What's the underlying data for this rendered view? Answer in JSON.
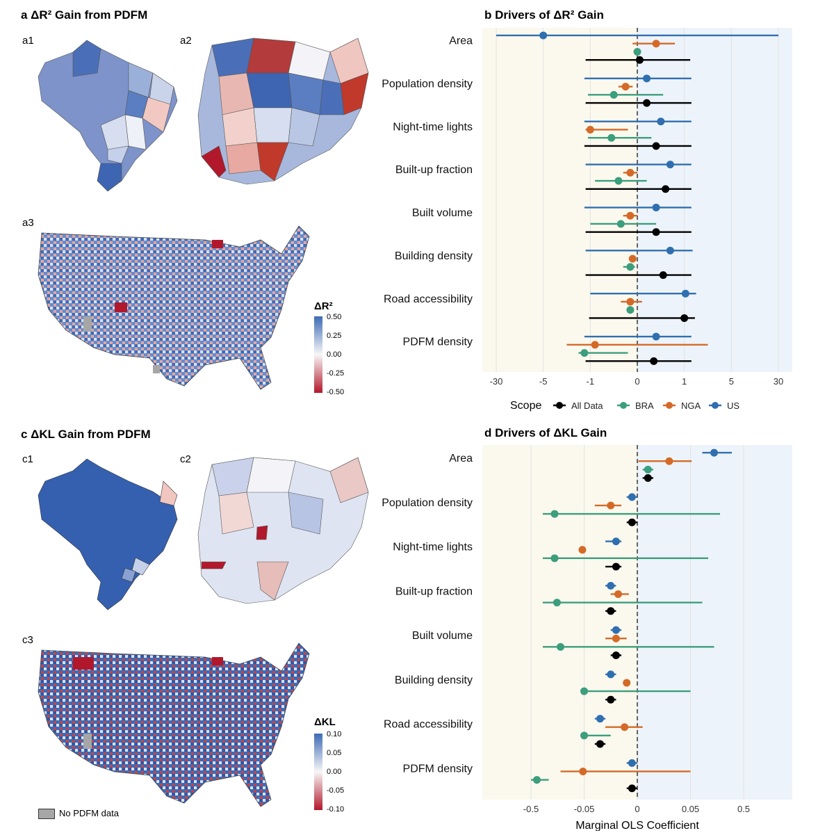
{
  "titles": {
    "a": "a ΔR² Gain from PDFM",
    "b": "b Drivers of ΔR² Gain",
    "c": "c ΔKL Gain from PDFM",
    "d": "d Drivers of ΔKL Gain"
  },
  "submaps": {
    "a1": "a1",
    "a2": "a2",
    "a3": "a3",
    "c1": "c1",
    "c2": "c2",
    "c3": "c3"
  },
  "map_legends": {
    "r2": {
      "title": "ΔR²",
      "ticks": [
        "0.50",
        "0.25",
        "0.00",
        "-0.25",
        "-0.50"
      ]
    },
    "kl": {
      "title": "ΔKL",
      "ticks": [
        "0.10",
        "0.05",
        "0.00",
        "-0.05",
        "-0.10"
      ]
    },
    "no_data": "No PDFM data"
  },
  "colors": {
    "All Data": "#000000",
    "BRA": "#3b9e7c",
    "NGA": "#d46a27",
    "US": "#2f6fb0",
    "neg_region": "#fbf8ee",
    "pos_region": "#edf3fa",
    "map_pos": "#3e6bb5",
    "map_neg": "#b2182b",
    "map_nodata": "#a6a6a6"
  },
  "chart_data": [
    {
      "id": "b",
      "type": "forest",
      "title": "b Drivers of ΔR² Gain",
      "xlabel": "",
      "scale": "pseudo-log",
      "xticks": [
        "-30",
        "-5",
        "-1",
        "0",
        "1",
        "5",
        "30"
      ],
      "legend_title": "Scope",
      "legend": [
        "All Data",
        "BRA",
        "NGA",
        "US"
      ],
      "categories": [
        "Area",
        "Population density",
        "Night-time lights",
        "Built-up fraction",
        "Built volume",
        "Building density",
        "Road accessibility",
        "PDFM density"
      ],
      "series": [
        {
          "name": "US",
          "estimate": [
            -5,
            0.2,
            0.5,
            0.7,
            0.4,
            0.7,
            1.1,
            0.4
          ],
          "low": [
            -30,
            -1.5,
            -1.5,
            -1.4,
            -1.5,
            -1.4,
            -1.0,
            -1.5
          ],
          "high": [
            30,
            1.6,
            1.6,
            1.6,
            1.6,
            1.7,
            2.0,
            1.6
          ]
        },
        {
          "name": "NGA",
          "estimate": [
            0.4,
            -0.25,
            -1.0,
            -0.15,
            -0.15,
            -0.1,
            -0.15,
            -0.9
          ],
          "low": [
            -0.1,
            -0.4,
            -1.4,
            -0.3,
            -0.3,
            -0.15,
            -0.35,
            -3
          ],
          "high": [
            0.8,
            -0.1,
            -0.2,
            0.0,
            0.0,
            -0.05,
            0.1,
            3
          ]
        },
        {
          "name": "BRA",
          "estimate": [
            0.0,
            -0.5,
            -0.55,
            -0.4,
            -0.35,
            -0.15,
            -0.15,
            -1.5
          ],
          "low": [
            -0.05,
            -1.2,
            -1.2,
            -0.9,
            -1.0,
            -0.3,
            -0.2,
            -2
          ],
          "high": [
            0.05,
            0.55,
            0.3,
            0.2,
            0.4,
            -0.05,
            -0.1,
            -0.2
          ]
        },
        {
          "name": "All Data",
          "estimate": [
            0.05,
            0.2,
            0.4,
            0.6,
            0.4,
            0.55,
            1.0,
            0.35
          ],
          "low": [
            -1.4,
            -1.4,
            -1.5,
            -1.4,
            -1.4,
            -1.4,
            -1.1,
            -1.4
          ],
          "high": [
            1.5,
            1.6,
            1.6,
            1.6,
            1.6,
            1.6,
            1.9,
            1.6
          ]
        }
      ]
    },
    {
      "id": "d",
      "type": "forest",
      "title": "d Drivers of ΔKL Gain",
      "xlabel": "Marginal OLS Coefficient",
      "scale": "pseudo-log",
      "xticks": [
        "-0.5",
        "-0.05",
        "0",
        "0.05",
        "0.5"
      ],
      "legend": [
        "All Data",
        "BRA",
        "NGA",
        "US"
      ],
      "categories": [
        "Area",
        "Population density",
        "Night-time lights",
        "Built-up fraction",
        "Built volume",
        "Building density",
        "Road accessibility",
        "PDFM density"
      ],
      "series": [
        {
          "name": "US",
          "estimate": [
            0.25,
            -0.005,
            -0.02,
            -0.025,
            -0.02,
            -0.025,
            -0.035,
            -0.005
          ],
          "low": [
            0.15,
            -0.01,
            -0.03,
            -0.03,
            -0.025,
            -0.03,
            -0.04,
            -0.01
          ],
          "high": [
            0.4,
            0.0,
            -0.015,
            -0.02,
            -0.015,
            -0.02,
            -0.03,
            0.0
          ]
        },
        {
          "name": "NGA",
          "estimate": [
            0.03,
            -0.025,
            -0.065,
            -0.018,
            -0.02,
            -0.01,
            -0.012,
            -0.06
          ],
          "low": [
            0.001,
            -0.04,
            -0.075,
            -0.025,
            -0.03,
            -0.012,
            -0.03,
            -0.25
          ],
          "high": [
            0.06,
            -0.015,
            -0.055,
            -0.008,
            -0.01,
            -0.008,
            0.005,
            0.05
          ]
        },
        {
          "name": "BRA",
          "estimate": [
            0.01,
            -0.3,
            -0.3,
            -0.28,
            -0.25,
            -0.05,
            -0.05,
            -0.45
          ],
          "low": [
            0.005,
            -0.4,
            -0.4,
            -0.4,
            -0.4,
            -0.06,
            -0.06,
            -0.6
          ],
          "high": [
            0.015,
            0.3,
            0.2,
            0.15,
            0.25,
            0.05,
            -0.025,
            -0.35
          ]
        },
        {
          "name": "All Data",
          "estimate": [
            0.01,
            -0.005,
            -0.02,
            -0.025,
            -0.02,
            -0.025,
            -0.035,
            -0.005
          ],
          "low": [
            0.005,
            -0.01,
            -0.03,
            -0.03,
            -0.025,
            -0.03,
            -0.04,
            -0.01
          ],
          "high": [
            0.015,
            0.0,
            -0.015,
            -0.02,
            -0.015,
            -0.02,
            -0.03,
            0.0
          ]
        }
      ]
    }
  ]
}
